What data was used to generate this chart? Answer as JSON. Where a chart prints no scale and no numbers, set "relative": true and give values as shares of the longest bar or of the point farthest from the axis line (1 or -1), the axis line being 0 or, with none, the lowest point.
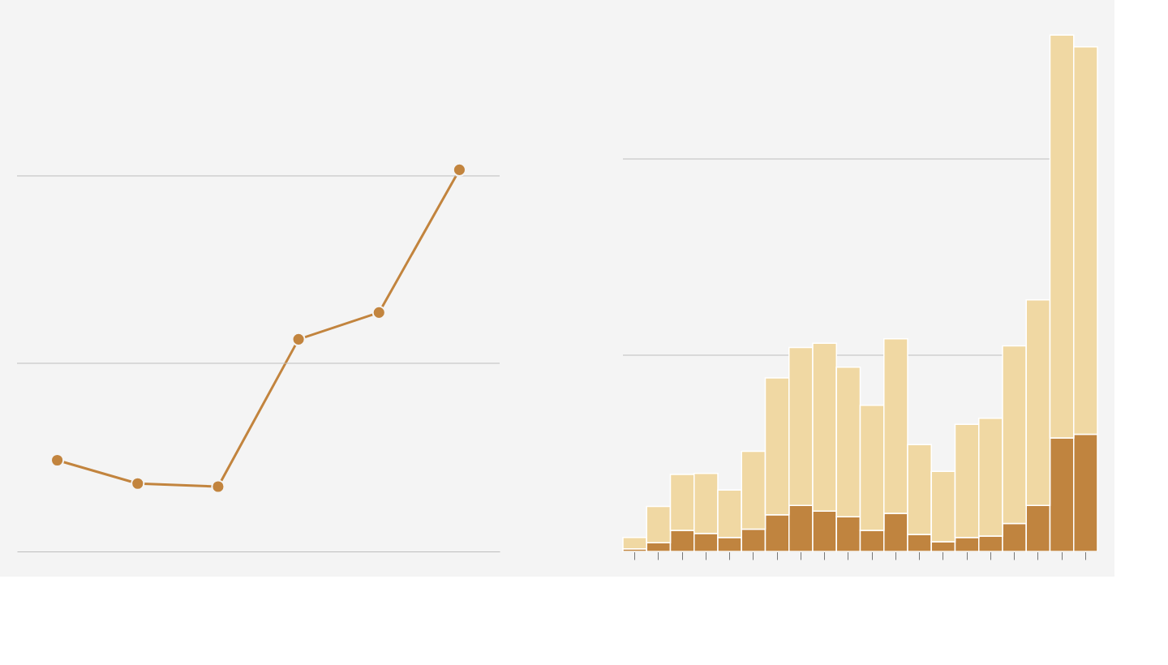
{
  "chart_data": [
    {
      "type": "line",
      "relative": true,
      "categories": [
        null,
        null,
        null,
        null,
        null,
        null
      ],
      "marker": "circle",
      "line_style": "solid",
      "tick_labels": false,
      "ref_lines": [
        {
          "axis": "y",
          "value": 0.493,
          "color": "#bdbdbd"
        },
        {
          "axis": "y",
          "value": 0.984,
          "color": "#bdbdbd"
        }
      ],
      "series": [
        {
          "color": "#c2843e",
          "values": [
            0.239,
            0.178,
            0.17,
            0.556,
            0.626,
            1.0
          ]
        }
      ]
    },
    {
      "type": "bar",
      "relative": true,
      "stacked": true,
      "tick_labels": false,
      "ref_lines": [
        {
          "axis": "y",
          "value": 0.38,
          "color": "#bdbdbd"
        },
        {
          "axis": "y",
          "value": 0.76,
          "color": "#bdbdbd"
        }
      ],
      "categories": [
        null,
        null,
        null,
        null,
        null,
        null,
        null,
        null,
        null,
        null,
        null,
        null,
        null,
        null,
        null,
        null,
        null,
        null,
        null,
        null
      ],
      "series": [
        {
          "color": "#c0843f",
          "values": [
            0.005,
            0.017,
            0.041,
            0.035,
            0.027,
            0.043,
            0.071,
            0.089,
            0.078,
            0.067,
            0.041,
            0.074,
            0.033,
            0.019,
            0.027,
            0.03,
            0.054,
            0.089,
            0.22,
            0.227
          ]
        },
        {
          "color": "#f0d8a3",
          "values": [
            0.022,
            0.07,
            0.108,
            0.116,
            0.092,
            0.151,
            0.265,
            0.306,
            0.325,
            0.29,
            0.242,
            0.338,
            0.174,
            0.136,
            0.219,
            0.228,
            0.344,
            0.398,
            0.78,
            0.75
          ]
        }
      ]
    }
  ]
}
